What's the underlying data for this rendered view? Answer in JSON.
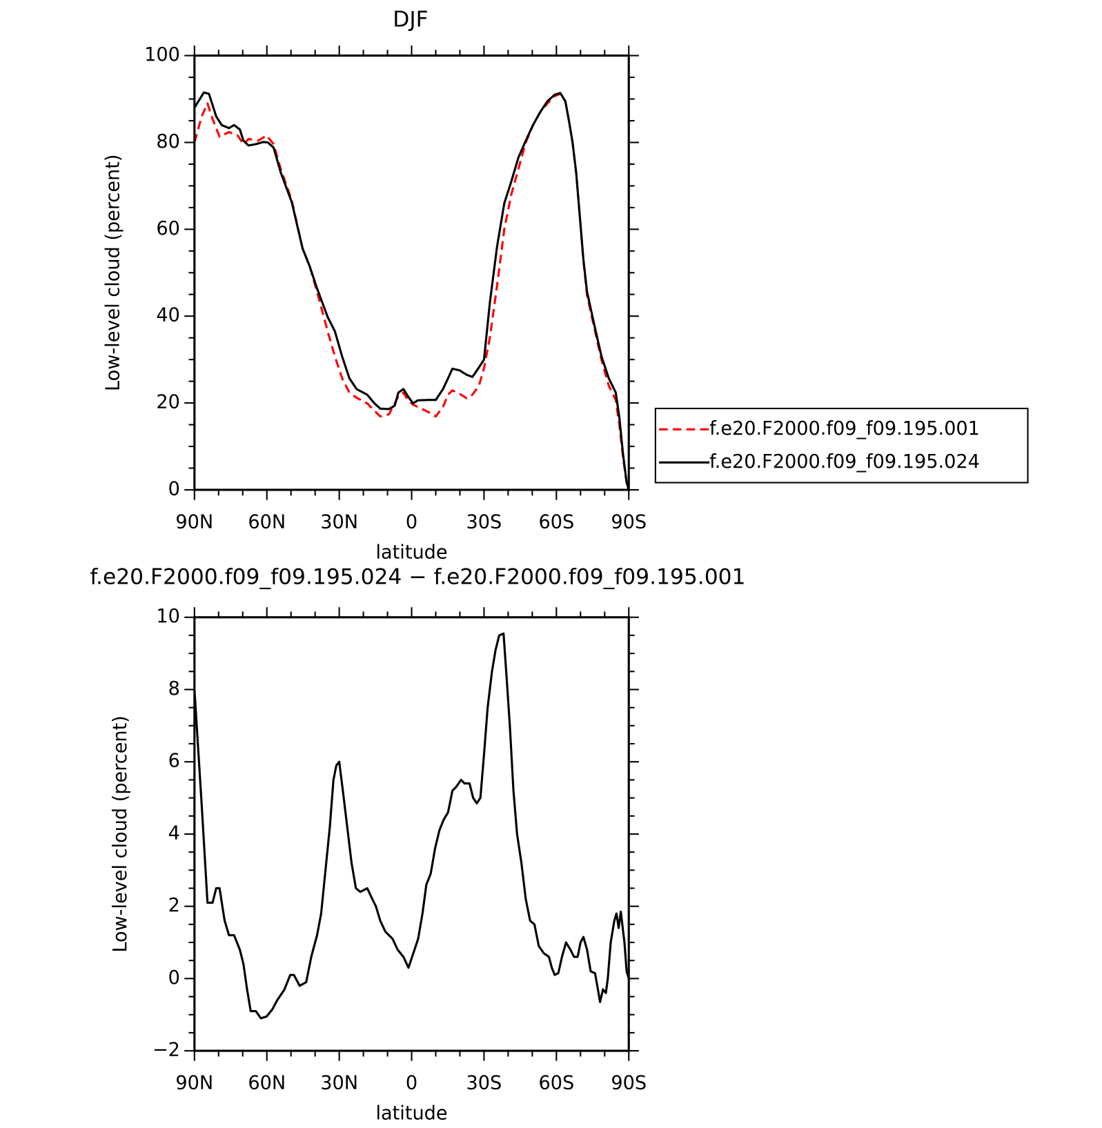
{
  "chart_data": [
    {
      "type": "line",
      "title": "DJF",
      "xlabel": "latitude",
      "ylabel": "Low-level cloud (percent)",
      "xlim": [
        90,
        -90
      ],
      "xticks": [
        {
          "value": 90,
          "label": "90N"
        },
        {
          "value": 60,
          "label": "60N"
        },
        {
          "value": 30,
          "label": "30N"
        },
        0,
        {
          "value": -30,
          "label": "30S"
        },
        {
          "value": -60,
          "label": "60S"
        },
        {
          "value": -90,
          "label": "90S"
        }
      ],
      "xminor_step": 10,
      "ylim": [
        0,
        100
      ],
      "yticks": [
        0,
        20,
        40,
        60,
        80,
        100
      ],
      "yminor_step": 5,
      "legend": "right",
      "series": [
        {
          "name": "f.e20.F2000.f09_f09.195.001",
          "color": "#ff0000",
          "line_style": "dashed",
          "x": [
            90,
            87,
            84.6,
            82.5,
            79.6,
            75.7,
            72.1,
            69.7,
            67.6,
            63.7,
            60.1,
            57.2,
            54.2,
            49.7,
            45.2,
            42.2,
            39.2,
            34.8,
            31.8,
            28.8,
            25.8,
            22.8,
            18.4,
            15.4,
            13,
            9.4,
            7,
            5.5,
            3.4,
            1.6,
            -0.6,
            -2.5,
            -7,
            -10,
            -13,
            -15.1,
            -16.9,
            -19.9,
            -22.8,
            -25.2,
            -27.9,
            -30,
            -32.4,
            -35.4,
            -38.4,
            -41.3,
            -44.3,
            -47.3,
            -50.3,
            -53.3,
            -56.3,
            -59.3,
            -61.6,
            -63.7,
            -65.2,
            -66.7,
            -68.2,
            -69.7,
            -71.2,
            -72.7,
            -75.7,
            -78.7,
            -81.7,
            -84.6,
            -86.1,
            -87.6,
            -89.1,
            -90
          ],
          "values": [
            80,
            86,
            89,
            85.4,
            81.3,
            82.4,
            81.6,
            79.6,
            80.8,
            80.4,
            81.6,
            79.6,
            73.8,
            66.7,
            55.6,
            51.4,
            45.6,
            36.5,
            30.7,
            25.7,
            22.4,
            21.2,
            19.9,
            18.2,
            16.9,
            17.4,
            19.9,
            21.6,
            22.4,
            20.7,
            19.6,
            19.1,
            17.9,
            16.9,
            19.1,
            21.9,
            22.9,
            22.1,
            21.1,
            21.9,
            24,
            28,
            35,
            47,
            60,
            68,
            74,
            80,
            84,
            87,
            89,
            90.7,
            91.2,
            89.5,
            85,
            80,
            73,
            63,
            52.7,
            44.8,
            37.3,
            29.9,
            24,
            20.7,
            14.9,
            7.5,
            1.7,
            0
          ]
        },
        {
          "name": "f.e20.F2000.f09_f09.195.024",
          "color": "#000000",
          "line_style": "solid",
          "x": [
            90,
            86.1,
            84,
            81,
            78.7,
            75.7,
            73.6,
            71.2,
            69.7,
            67.6,
            64.6,
            61.6,
            59.6,
            57.2,
            54.2,
            49.7,
            45.2,
            42.2,
            39.2,
            34.8,
            31.8,
            28.8,
            25.8,
            22.8,
            18.4,
            15.4,
            13,
            9.4,
            7,
            5.5,
            3.4,
            1.6,
            -0.6,
            -2.5,
            -7,
            -10,
            -13,
            -15.1,
            -16.9,
            -19.9,
            -22.8,
            -25.2,
            -27.9,
            -30,
            -32.4,
            -35.4,
            -38.4,
            -41.3,
            -44.3,
            -47.3,
            -50.3,
            -53.3,
            -56.3,
            -59.3,
            -61.6,
            -63.7,
            -65.2,
            -66.7,
            -68.2,
            -69.7,
            -71.2,
            -72.7,
            -75.7,
            -78.7,
            -81.7,
            -84.6,
            -86.1,
            -87.6,
            -89.1,
            -90
          ],
          "values": [
            88,
            91.5,
            91.2,
            86,
            84,
            83.3,
            84,
            83,
            80.4,
            79.3,
            79.6,
            80.1,
            80,
            78.8,
            73,
            66.3,
            55.6,
            51.4,
            46.4,
            39.8,
            36.5,
            30.7,
            25.7,
            23.2,
            21.9,
            19.9,
            18.7,
            18.6,
            19.4,
            22.4,
            23.2,
            21.6,
            19.9,
            20.6,
            20.7,
            20.7,
            23.2,
            25.7,
            27.9,
            27.5,
            26.5,
            26,
            28.2,
            30,
            43,
            56,
            66,
            71,
            76.6,
            80.4,
            84,
            87,
            89.5,
            91,
            91.4,
            89.5,
            85,
            80,
            73,
            63,
            53,
            45.6,
            38,
            30.7,
            25.7,
            22.4,
            16.6,
            8.3,
            1.7,
            0
          ]
        }
      ]
    },
    {
      "type": "line",
      "title": "f.e20.F2000.f09_f09.195.024 − f.e20.F2000.f09_f09.195.001",
      "xlabel": "latitude",
      "ylabel": "Low-level cloud (percent)",
      "xlim": [
        90,
        -90
      ],
      "xticks": [
        {
          "value": 90,
          "label": "90N"
        },
        {
          "value": 60,
          "label": "60N"
        },
        {
          "value": 30,
          "label": "30N"
        },
        0,
        {
          "value": -30,
          "label": "30S"
        },
        {
          "value": -60,
          "label": "60S"
        },
        {
          "value": -90,
          "label": "90S"
        }
      ],
      "xminor_step": 10,
      "ylim": [
        -2,
        10
      ],
      "yticks": [
        {
          "value": -2,
          "label": "−2"
        },
        0,
        2,
        4,
        6,
        8,
        10
      ],
      "yminor_step": 0.5,
      "series": [
        {
          "color": "#000000",
          "line_style": "solid",
          "x": [
            90,
            87,
            84.6,
            82.5,
            81,
            79.6,
            77.5,
            75.7,
            73.6,
            71.2,
            69.7,
            68.2,
            66.7,
            64.6,
            62.5,
            60.1,
            57.7,
            55.7,
            52.7,
            50.3,
            48.8,
            46.4,
            43.7,
            41.6,
            39.2,
            37.5,
            35.7,
            33.9,
            32.4,
            31.2,
            30,
            28.5,
            26.7,
            24.9,
            23.1,
            21.3,
            18.4,
            16.3,
            14.8,
            13,
            10.9,
            7.9,
            5.8,
            3.4,
            1.3,
            -1.2,
            -2.7,
            -4.5,
            -6.1,
            -7.9,
            -9.7,
            -11.5,
            -13.3,
            -15.1,
            -16.9,
            -18.4,
            -20.5,
            -21.9,
            -24,
            -25.5,
            -27,
            -28.5,
            -30,
            -31.5,
            -33.3,
            -34.8,
            -36.3,
            -38.1,
            -39.3,
            -40.7,
            -42.2,
            -43.7,
            -45.5,
            -47.3,
            -49.1,
            -50.9,
            -52.7,
            -54.8,
            -56.9,
            -58.1,
            -59.3,
            -60.8,
            -62.3,
            -64,
            -65.8,
            -67.3,
            -68.8,
            -70,
            -71.2,
            -72.7,
            -74.2,
            -76,
            -77.2,
            -78.1,
            -79.3,
            -80.5,
            -81.3,
            -82.5,
            -84,
            -84.9,
            -85.8,
            -86.7,
            -88.2,
            -89.1,
            -90
          ],
          "values": [
            8,
            4.8,
            2.1,
            2.1,
            2.5,
            2.5,
            1.6,
            1.2,
            1.2,
            0.8,
            0.4,
            -0.3,
            -0.9,
            -0.9,
            -1.1,
            -1.05,
            -0.85,
            -0.6,
            -0.3,
            0.1,
            0.1,
            -0.2,
            -0.1,
            0.6,
            1.2,
            1.8,
            3,
            4.2,
            5.5,
            5.9,
            6,
            5.2,
            4.2,
            3.2,
            2.5,
            2.4,
            2.5,
            2.2,
            2,
            1.6,
            1.3,
            1.1,
            0.8,
            0.6,
            0.3,
            0.8,
            1.1,
            1.8,
            2.6,
            2.9,
            3.6,
            4.1,
            4.4,
            4.6,
            5.2,
            5.3,
            5.5,
            5.4,
            5.4,
            5,
            4.85,
            5,
            6.2,
            7.5,
            8.5,
            9.1,
            9.5,
            9.55,
            8.4,
            7,
            5.2,
            4,
            3.2,
            2.2,
            1.6,
            1.5,
            0.9,
            0.7,
            0.6,
            0.3,
            0.1,
            0.15,
            0.6,
            1,
            0.8,
            0.6,
            0.6,
            1,
            1.15,
            0.8,
            0.2,
            0.15,
            -0.3,
            -0.65,
            -0.3,
            -0.4,
            0,
            1,
            1.6,
            1.8,
            1.4,
            1.85,
            1,
            0.2,
            0
          ]
        }
      ]
    }
  ]
}
